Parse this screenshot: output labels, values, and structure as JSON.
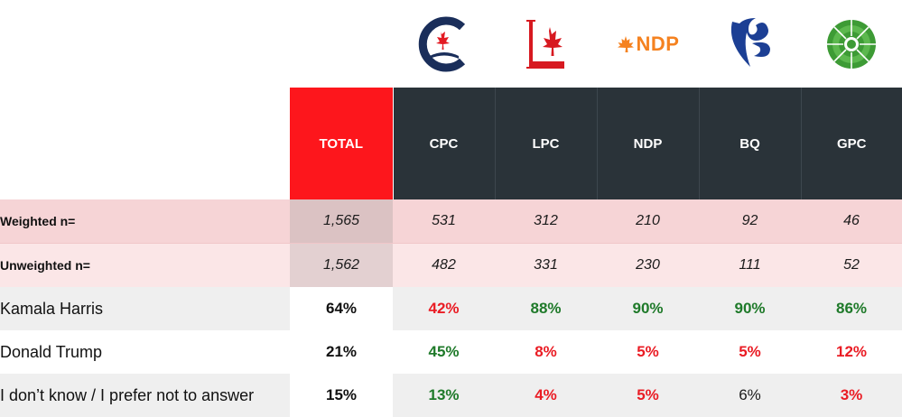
{
  "header": {
    "total": "TOTAL",
    "parties": [
      "CPC",
      "LPC",
      "NDP",
      "BQ",
      "GPC"
    ]
  },
  "logos": {
    "cpc": {
      "icon": "cpc-logo-icon",
      "color": "#1a2e5a",
      "accent": "#e31b23"
    },
    "lpc": {
      "icon": "lpc-logo-icon",
      "color": "#d71920"
    },
    "ndp": {
      "icon": "ndp-logo-icon",
      "text": "NDP",
      "color": "#f58220"
    },
    "bq": {
      "icon": "bq-logo-icon",
      "color": "#1c3f94"
    },
    "gpc": {
      "icon": "gpc-logo-icon",
      "color": "#3d9b35"
    }
  },
  "weighted": {
    "label": "Weighted n=",
    "total": "1,565",
    "values": [
      "531",
      "312",
      "210",
      "92",
      "46"
    ]
  },
  "unweighted": {
    "label": "Unweighted n=",
    "total": "1,562",
    "values": [
      "482",
      "331",
      "230",
      "111",
      "52"
    ]
  },
  "rows": [
    {
      "label": "Kamala Harris",
      "total": "64%",
      "values": [
        "42%",
        "88%",
        "90%",
        "90%",
        "86%"
      ]
    },
    {
      "label": "Donald Trump",
      "total": "21%",
      "values": [
        "45%",
        "8%",
        "5%",
        "5%",
        "12%"
      ]
    },
    {
      "label": "I don’t know / I prefer not to answer",
      "total": "15%",
      "values": [
        "13%",
        "4%",
        "5%",
        "6%",
        "3%"
      ]
    }
  ],
  "colors": {
    "total_header": "#fd161c",
    "party_header": "#2a3339",
    "positive": "#1f7a2a",
    "negative": "#ea1c24"
  }
}
